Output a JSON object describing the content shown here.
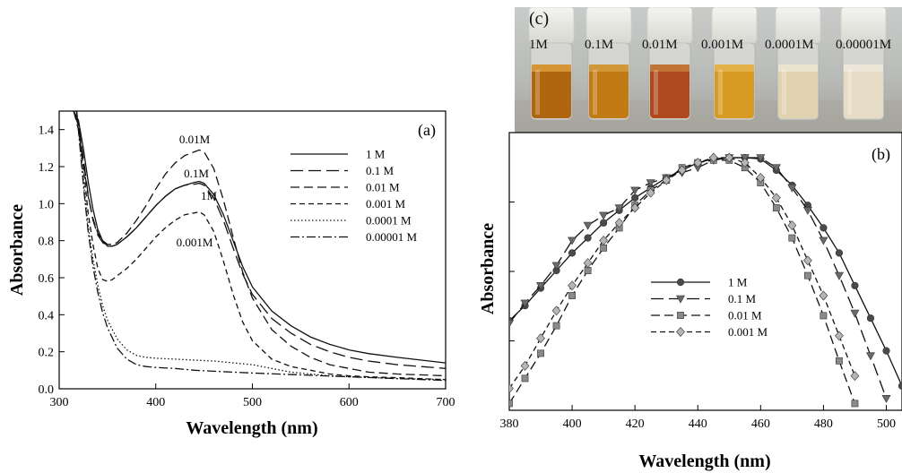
{
  "panel_a": {
    "label": "(a)",
    "xlabel": "Wavelength (nm)",
    "ylabel": "Absorbance",
    "xticks": [
      "300",
      "400",
      "500",
      "600",
      "700"
    ],
    "yticks": [
      "0.0",
      "0.2",
      "0.4",
      "0.6",
      "0.8",
      "1.0",
      "1.2",
      "1.4"
    ],
    "annotations": [
      "0.01M",
      "0.1M",
      "1M",
      "0.001M"
    ],
    "legend": [
      "1 M",
      "0.1 M",
      "0.01 M",
      "0.001 M",
      "0.0001 M",
      "0.00001 M"
    ]
  },
  "panel_b": {
    "label": "(b)",
    "xlabel": "Wavelength (nm)",
    "ylabel": "Absorbance",
    "xticks": [
      "380",
      "400",
      "420",
      "440",
      "460",
      "480",
      "500"
    ],
    "legend": [
      "1 M",
      "0.1 M",
      "0.01 M",
      "0.001 M"
    ]
  },
  "panel_c": {
    "label": "(c)",
    "vial_labels": [
      "1M",
      "0.1M",
      "0.01M",
      "0.001M",
      "0.0001M",
      "0.00001M"
    ]
  },
  "chart_data": [
    {
      "type": "line",
      "panel": "(a)",
      "xlabel": "Wavelength (nm)",
      "ylabel": "Absorbance",
      "xlim": [
        300,
        700
      ],
      "ylim": [
        0,
        1.5
      ],
      "legend_position": "top-right",
      "series": [
        {
          "name": "1 M",
          "style": "solid",
          "x": [
            315,
            320,
            325,
            330,
            335,
            340,
            345,
            350,
            355,
            360,
            370,
            380,
            390,
            400,
            410,
            420,
            430,
            440,
            445,
            450,
            460,
            470,
            480,
            490,
            500,
            520,
            540,
            560,
            580,
            600,
            620,
            650,
            700
          ],
          "y": [
            1.5,
            1.45,
            1.3,
            1.12,
            0.97,
            0.86,
            0.8,
            0.77,
            0.77,
            0.78,
            0.82,
            0.87,
            0.93,
            0.99,
            1.04,
            1.08,
            1.1,
            1.115,
            1.12,
            1.11,
            1.05,
            0.94,
            0.8,
            0.66,
            0.55,
            0.42,
            0.34,
            0.28,
            0.24,
            0.21,
            0.19,
            0.17,
            0.14
          ]
        },
        {
          "name": "0.1 M",
          "style": "long-dash",
          "x": [
            315,
            320,
            325,
            330,
            335,
            340,
            345,
            350,
            355,
            360,
            370,
            380,
            390,
            400,
            410,
            420,
            430,
            440,
            445,
            450,
            460,
            470,
            480,
            490,
            500,
            520,
            540,
            560,
            580,
            600,
            620,
            650,
            700
          ],
          "y": [
            1.5,
            1.42,
            1.25,
            1.05,
            0.91,
            0.83,
            0.79,
            0.77,
            0.77,
            0.78,
            0.82,
            0.87,
            0.93,
            0.99,
            1.04,
            1.08,
            1.1,
            1.105,
            1.11,
            1.1,
            1.03,
            0.91,
            0.76,
            0.62,
            0.51,
            0.38,
            0.3,
            0.24,
            0.2,
            0.17,
            0.15,
            0.13,
            0.11
          ]
        },
        {
          "name": "0.01 M",
          "style": "dash",
          "x": [
            315,
            320,
            325,
            330,
            335,
            340,
            345,
            350,
            355,
            360,
            370,
            380,
            390,
            400,
            410,
            420,
            430,
            440,
            445,
            450,
            460,
            470,
            480,
            490,
            500,
            520,
            540,
            560,
            580,
            600,
            620,
            650,
            700
          ],
          "y": [
            1.5,
            1.4,
            1.22,
            1.04,
            0.92,
            0.84,
            0.8,
            0.78,
            0.78,
            0.79,
            0.84,
            0.91,
            0.99,
            1.08,
            1.16,
            1.22,
            1.26,
            1.28,
            1.29,
            1.28,
            1.19,
            1.02,
            0.82,
            0.63,
            0.49,
            0.32,
            0.23,
            0.17,
            0.13,
            0.11,
            0.09,
            0.08,
            0.07
          ]
        },
        {
          "name": "0.001 M",
          "style": "short-dash",
          "x": [
            318,
            322,
            326,
            330,
            335,
            340,
            345,
            350,
            355,
            360,
            370,
            380,
            390,
            400,
            410,
            420,
            430,
            440,
            445,
            450,
            460,
            470,
            480,
            490,
            500,
            520,
            540,
            560,
            580,
            600,
            620,
            650,
            700
          ],
          "y": [
            1.5,
            1.35,
            1.15,
            0.95,
            0.78,
            0.65,
            0.59,
            0.58,
            0.59,
            0.61,
            0.65,
            0.7,
            0.76,
            0.82,
            0.87,
            0.91,
            0.94,
            0.95,
            0.955,
            0.94,
            0.85,
            0.69,
            0.51,
            0.36,
            0.26,
            0.16,
            0.12,
            0.1,
            0.08,
            0.07,
            0.065,
            0.06,
            0.05
          ]
        },
        {
          "name": "0.0001 M",
          "style": "dotted",
          "x": [
            318,
            322,
            326,
            330,
            335,
            340,
            345,
            350,
            360,
            370,
            380,
            390,
            400,
            420,
            440,
            460,
            480,
            500,
            510,
            520,
            540,
            560,
            580,
            600,
            650,
            700
          ],
          "y": [
            1.5,
            1.3,
            1.08,
            0.88,
            0.7,
            0.56,
            0.45,
            0.37,
            0.27,
            0.21,
            0.18,
            0.17,
            0.165,
            0.16,
            0.155,
            0.15,
            0.14,
            0.13,
            0.12,
            0.11,
            0.09,
            0.08,
            0.07,
            0.065,
            0.055,
            0.05
          ]
        },
        {
          "name": "0.00001 M",
          "style": "dash-dot",
          "x": [
            318,
            322,
            326,
            330,
            335,
            340,
            345,
            350,
            360,
            370,
            380,
            390,
            400,
            420,
            440,
            460,
            480,
            500,
            550,
            600,
            650,
            700
          ],
          "y": [
            1.5,
            1.28,
            1.05,
            0.85,
            0.66,
            0.52,
            0.41,
            0.33,
            0.22,
            0.16,
            0.13,
            0.12,
            0.115,
            0.11,
            0.1,
            0.095,
            0.09,
            0.085,
            0.075,
            0.065,
            0.055,
            0.045
          ]
        }
      ]
    },
    {
      "type": "line",
      "panel": "(b)",
      "xlabel": "Wavelength (nm)",
      "ylabel": "Absorbance",
      "xlim": [
        380,
        505
      ],
      "ylim": [
        0,
        1.05
      ],
      "yticks_labeled": false,
      "legend_position": "center",
      "series": [
        {
          "name": "1 M",
          "style": "solid",
          "marker": "circle",
          "x": [
            380,
            385,
            390,
            395,
            400,
            405,
            410,
            415,
            420,
            425,
            430,
            435,
            440,
            445,
            450,
            455,
            460,
            465,
            470,
            475,
            480,
            485,
            490,
            495,
            500,
            505
          ],
          "y": [
            0.35,
            0.41,
            0.48,
            0.55,
            0.62,
            0.68,
            0.74,
            0.79,
            0.84,
            0.88,
            0.92,
            0.95,
            0.98,
            0.995,
            1.0,
            1.0,
            0.995,
            0.95,
            0.89,
            0.81,
            0.72,
            0.62,
            0.49,
            0.36,
            0.23,
            0.09
          ]
        },
        {
          "name": "0.1 M",
          "style": "long-dash",
          "marker": "triangle-down",
          "x": [
            380,
            385,
            390,
            395,
            400,
            405,
            410,
            415,
            420,
            425,
            430,
            435,
            440,
            445,
            450,
            455,
            460,
            465,
            470,
            475,
            480,
            485,
            490,
            495,
            500
          ],
          "y": [
            0.34,
            0.42,
            0.49,
            0.57,
            0.67,
            0.73,
            0.77,
            0.8,
            0.87,
            0.9,
            0.92,
            0.94,
            0.96,
            0.99,
            1.0,
            1.0,
            1.0,
            0.96,
            0.88,
            0.79,
            0.67,
            0.53,
            0.38,
            0.21,
            0.04
          ]
        },
        {
          "name": "0.01 M",
          "style": "dash",
          "marker": "square",
          "x": [
            380,
            385,
            390,
            395,
            400,
            405,
            410,
            415,
            420,
            425,
            430,
            435,
            440,
            445,
            450,
            455,
            460,
            465,
            470,
            475,
            480,
            485,
            490
          ],
          "y": [
            0.02,
            0.12,
            0.22,
            0.33,
            0.45,
            0.55,
            0.64,
            0.72,
            0.81,
            0.87,
            0.91,
            0.96,
            0.98,
            0.99,
            0.99,
            0.96,
            0.9,
            0.8,
            0.68,
            0.53,
            0.37,
            0.19,
            0.02
          ]
        },
        {
          "name": "0.001 M",
          "style": "short-dash",
          "marker": "diamond",
          "x": [
            380,
            385,
            390,
            395,
            400,
            405,
            410,
            415,
            420,
            425,
            430,
            435,
            440,
            445,
            450,
            455,
            460,
            465,
            470,
            475,
            480,
            485,
            490
          ],
          "y": [
            0.08,
            0.17,
            0.28,
            0.39,
            0.49,
            0.58,
            0.67,
            0.74,
            0.8,
            0.86,
            0.91,
            0.95,
            0.98,
            1.0,
            1.0,
            0.98,
            0.92,
            0.84,
            0.73,
            0.59,
            0.45,
            0.29,
            0.13
          ]
        }
      ]
    }
  ]
}
